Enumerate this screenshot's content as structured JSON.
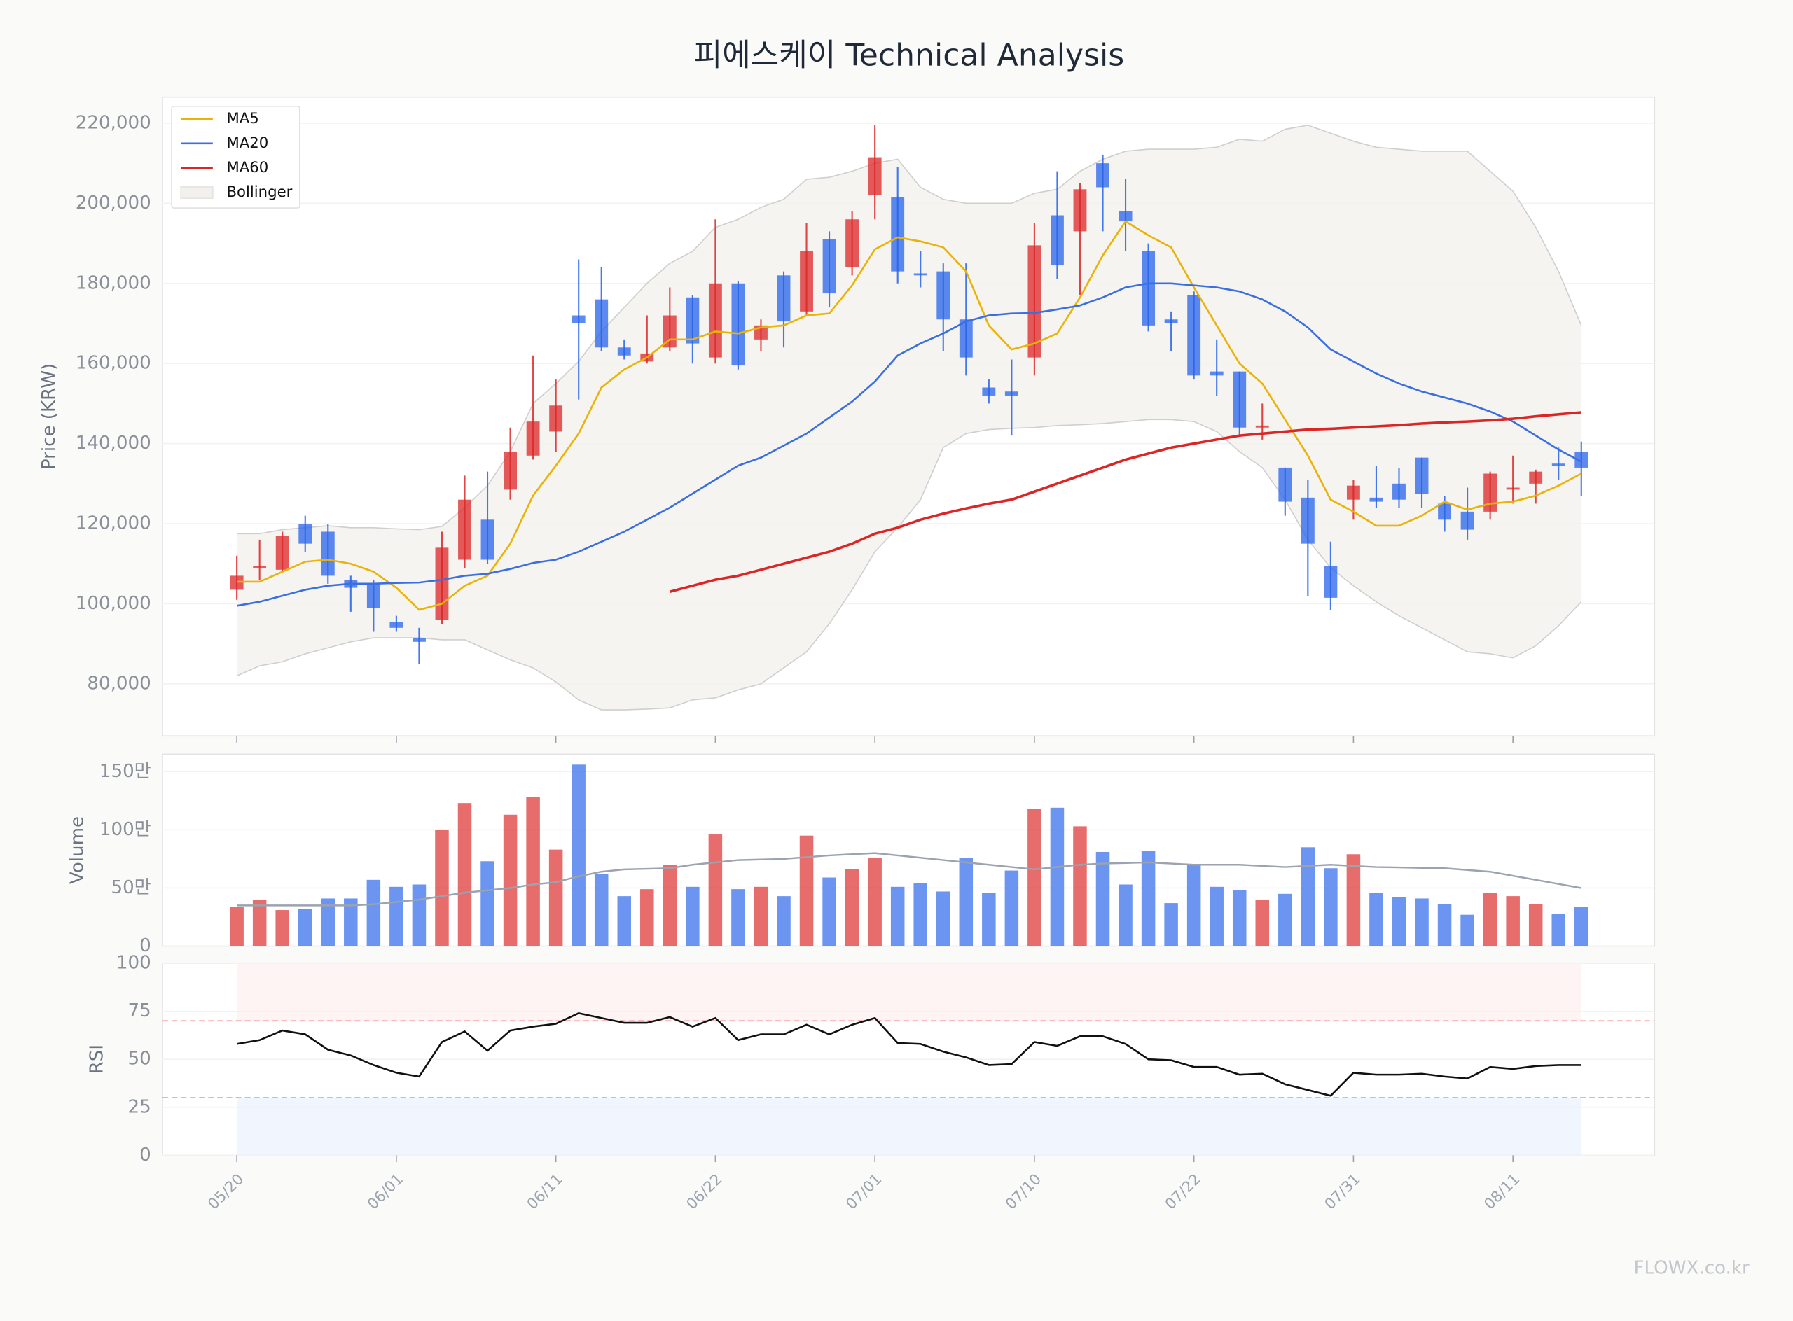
{
  "watermark": "FLOWX.co.kr",
  "chart_data": [
    {
      "type": "candlestick",
      "title": "피에스케이 Technical Analysis",
      "ylabel": "Price (KRW)",
      "legend": "upper left",
      "up_color": "#dc2626",
      "down_color": "#2563eb",
      "open": [
        103500,
        109000,
        108500,
        120000,
        118000,
        106000,
        105000,
        95500,
        91500,
        96000,
        111000,
        121000,
        128500,
        137000,
        143000,
        172000,
        176000,
        164000,
        160500,
        164000,
        176500,
        161500,
        180000,
        166000,
        182000,
        173000,
        191000,
        184000,
        202000,
        201500,
        182500,
        183000,
        171000,
        154000,
        153000,
        161500,
        197000,
        193000,
        210000,
        198000,
        188000,
        171000,
        177000,
        158000,
        158000,
        144000,
        134000,
        126500,
        109500,
        126000,
        126500,
        130000,
        136500,
        125000,
        123000,
        123000,
        128500,
        130000,
        135000,
        138000
      ],
      "high": [
        112000,
        116000,
        118000,
        122000,
        120000,
        107000,
        106000,
        97000,
        94000,
        118000,
        132000,
        133000,
        144000,
        162000,
        156000,
        186000,
        184000,
        166000,
        172000,
        179000,
        177000,
        196000,
        180500,
        171000,
        183000,
        195000,
        193000,
        198000,
        219500,
        209000,
        188000,
        185000,
        185000,
        156000,
        161000,
        195000,
        208000,
        205000,
        212000,
        206000,
        190000,
        173000,
        178000,
        166000,
        158000,
        150000,
        134000,
        131000,
        115500,
        131000,
        134500,
        134000,
        136500,
        127000,
        129000,
        133000,
        137000,
        133500,
        139000,
        140500
      ],
      "low": [
        101000,
        106000,
        108000,
        113000,
        105000,
        98000,
        93000,
        93000,
        85000,
        95000,
        109000,
        110000,
        126000,
        136000,
        138000,
        151000,
        163000,
        161000,
        160000,
        163000,
        160000,
        160000,
        158500,
        163000,
        164000,
        172000,
        174000,
        182000,
        196000,
        180000,
        179000,
        163000,
        157000,
        150000,
        142000,
        157000,
        181000,
        177000,
        193000,
        188000,
        168000,
        163000,
        156000,
        152000,
        142000,
        141000,
        122000,
        102000,
        98500,
        121000,
        124000,
        124000,
        124000,
        118000,
        116000,
        121000,
        125000,
        125000,
        131000,
        127000
      ],
      "close": [
        107000,
        109500,
        117000,
        115000,
        107000,
        104000,
        99000,
        94000,
        90500,
        114000,
        126000,
        111000,
        138000,
        145500,
        149500,
        170000,
        164000,
        162000,
        162500,
        172000,
        165000,
        180000,
        159500,
        169500,
        170500,
        188000,
        177500,
        196000,
        211500,
        183000,
        182000,
        171000,
        161500,
        152000,
        152000,
        189500,
        184500,
        203500,
        204000,
        195500,
        169500,
        170000,
        157000,
        157000,
        144000,
        144500,
        125500,
        115000,
        101500,
        129500,
        125500,
        126000,
        127500,
        121000,
        118500,
        132500,
        129000,
        133000,
        134500,
        134000
      ],
      "series": [
        {
          "name": "MA5",
          "color": "#eab308",
          "values": [
            105500,
            105500,
            108000,
            110500,
            111000,
            110000,
            108000,
            104000,
            98500,
            100000,
            104500,
            107000,
            115000,
            127000,
            134500,
            142500,
            154000,
            158500,
            161500,
            166000,
            166000,
            168000,
            167500,
            169000,
            169500,
            172000,
            172500,
            179500,
            188500,
            191500,
            190500,
            189000,
            183000,
            169500,
            163500,
            165000,
            167500,
            176500,
            187000,
            195500,
            192000,
            189000,
            179000,
            169500,
            160000,
            155000,
            146000,
            137000,
            126000,
            123000,
            119500,
            119500,
            122000,
            125500,
            123500,
            125000,
            125500,
            127000,
            129500,
            132500
          ]
        },
        {
          "name": "MA20",
          "color": "#3b6fe0",
          "values": [
            99500,
            100500,
            102000,
            103500,
            104500,
            105000,
            105000,
            105200,
            105300,
            106000,
            107000,
            107500,
            108700,
            110200,
            111000,
            113000,
            115500,
            118000,
            121000,
            124000,
            127500,
            131000,
            134500,
            136500,
            139500,
            142500,
            146500,
            150500,
            155500,
            162000,
            165000,
            167500,
            170500,
            172000,
            172500,
            172600,
            173500,
            174500,
            176500,
            179000,
            180000,
            180000,
            179500,
            179000,
            178000,
            176000,
            173000,
            169000,
            163500,
            160500,
            157500,
            155000,
            153000,
            151500,
            150000,
            148000,
            145500,
            142000,
            138500,
            135500
          ]
        },
        {
          "name": "MA60",
          "color": "#dc2626",
          "values": [
            null,
            null,
            null,
            null,
            null,
            null,
            null,
            null,
            null,
            null,
            null,
            null,
            null,
            null,
            null,
            null,
            null,
            null,
            null,
            103000,
            104500,
            106000,
            107000,
            108500,
            110000,
            111500,
            113000,
            115000,
            117500,
            119000,
            121000,
            122500,
            123800,
            125000,
            126000,
            128000,
            130000,
            132000,
            134000,
            136000,
            137500,
            139000,
            140000,
            141000,
            142000,
            142500,
            143000,
            143500,
            143700,
            144000,
            144300,
            144600,
            145000,
            145300,
            145500,
            145800,
            146200,
            146800,
            147300,
            147800
          ]
        }
      ],
      "bands": {
        "name": "Bollinger",
        "color": "#f3f1ee",
        "upper": [
          117500,
          117500,
          118500,
          119000,
          119500,
          119000,
          119000,
          118700,
          118500,
          119300,
          124000,
          129500,
          138000,
          150000,
          155000,
          160500,
          168000,
          174000,
          180000,
          185000,
          188000,
          194000,
          196000,
          199000,
          201000,
          206000,
          206500,
          208000,
          210000,
          211000,
          204000,
          201000,
          200000,
          200000,
          200000,
          202500,
          203500,
          208000,
          211000,
          213000,
          213500,
          213500,
          213500,
          214000,
          216000,
          215500,
          218500,
          219500,
          217500,
          215500,
          214000,
          213500,
          213000,
          213000,
          213000,
          208000,
          203000,
          194000,
          183000,
          169500
        ],
        "lower": [
          82000,
          84500,
          85500,
          87500,
          89000,
          90500,
          91500,
          91500,
          91500,
          91000,
          91000,
          88500,
          86000,
          84000,
          80500,
          76000,
          73500,
          73500,
          73700,
          74000,
          76000,
          76500,
          78500,
          80000,
          84000,
          88000,
          95000,
          103500,
          113000,
          119000,
          126000,
          139000,
          142500,
          143500,
          143800,
          144000,
          144500,
          144700,
          145000,
          145500,
          146000,
          146000,
          145500,
          143000,
          138000,
          134000,
          126000,
          116000,
          109000,
          104500,
          100500,
          97000,
          94000,
          91000,
          88000,
          87500,
          86500,
          89500,
          94500,
          100500
        ]
      },
      "ylim": [
        67000,
        226500
      ],
      "yticks": [
        {
          "value": 80000,
          "label": "80,000"
        },
        {
          "value": 100000,
          "label": "100,000"
        },
        {
          "value": 120000,
          "label": "120,000"
        },
        {
          "value": 140000,
          "label": "140,000"
        },
        {
          "value": 160000,
          "label": "160,000"
        },
        {
          "value": 180000,
          "label": "180,000"
        },
        {
          "value": 200000,
          "label": "200,000"
        },
        {
          "value": 220000,
          "label": "220,000"
        }
      ],
      "grid": true
    },
    {
      "type": "bar",
      "ylabel": "Volume",
      "values": [
        340000,
        400000,
        310000,
        320000,
        410000,
        410000,
        570000,
        510000,
        530000,
        1000000,
        1230000,
        730000,
        1130000,
        1280000,
        830000,
        1560000,
        620000,
        430000,
        490000,
        700000,
        510000,
        960000,
        490000,
        510000,
        430000,
        950000,
        590000,
        660000,
        760000,
        510000,
        540000,
        470000,
        760000,
        460000,
        650000,
        1180000,
        1190000,
        1030000,
        810000,
        530000,
        820000,
        370000,
        700000,
        510000,
        480000,
        400000,
        450000,
        850000,
        670000,
        790000,
        460000,
        420000,
        410000,
        360000,
        270000,
        460000,
        430000,
        360000,
        280000,
        340000
      ],
      "ma_color": "#9ca3af",
      "ma_values": [
        350000,
        350000,
        350000,
        350000,
        350000,
        350000,
        360000,
        380000,
        400000,
        430000,
        460000,
        480000,
        500000,
        530000,
        550000,
        600000,
        640000,
        660000,
        665000,
        670000,
        700000,
        720000,
        740000,
        745000,
        750000,
        765000,
        780000,
        790000,
        800000,
        780000,
        760000,
        740000,
        720000,
        700000,
        680000,
        660000,
        680000,
        700000,
        710000,
        715000,
        720000,
        710000,
        700000,
        700000,
        700000,
        690000,
        680000,
        690000,
        700000,
        690000,
        680000,
        677000,
        673000,
        670000,
        655000,
        640000,
        605000,
        570000,
        535000,
        500000
      ],
      "ylim": [
        0,
        1650000
      ],
      "yticks": [
        0,
        {
          "value": 500000,
          "label": "50만"
        },
        {
          "value": 1000000,
          "label": "100만"
        },
        {
          "value": 1500000,
          "label": "150만"
        }
      ],
      "grid": true
    },
    {
      "type": "line",
      "ylabel": "RSI",
      "color": "#111111",
      "values": [
        58,
        60,
        65,
        63,
        55,
        52,
        47,
        43,
        41,
        59,
        64.5,
        54.5,
        65,
        67,
        68.5,
        74,
        71.5,
        69,
        69,
        72,
        67,
        71.5,
        60,
        63,
        63,
        68,
        63,
        68,
        71.5,
        58.5,
        58,
        54,
        51,
        47,
        47.5,
        59,
        57,
        62,
        62,
        58,
        50,
        49.5,
        46,
        46,
        42,
        42.5,
        37,
        34,
        31,
        43,
        42,
        42,
        42.5,
        41,
        40,
        46,
        45,
        46.5,
        47,
        47
      ],
      "overbought": 70,
      "oversold": 30,
      "ylim": [
        0,
        100
      ],
      "yticks": [
        0,
        25,
        50,
        75,
        100
      ],
      "grid": true,
      "categories": [
        "05/20",
        null,
        null,
        null,
        null,
        null,
        null,
        "06/01",
        null,
        null,
        null,
        null,
        null,
        null,
        "06/11",
        null,
        null,
        null,
        null,
        null,
        null,
        "06/22",
        null,
        null,
        null,
        null,
        null,
        null,
        "07/01",
        null,
        null,
        null,
        null,
        null,
        null,
        "07/10",
        null,
        null,
        null,
        null,
        null,
        null,
        "07/22",
        null,
        null,
        null,
        null,
        null,
        null,
        "07/31",
        null,
        null,
        null,
        null,
        null,
        null,
        "08/11",
        null,
        null,
        null
      ]
    }
  ]
}
